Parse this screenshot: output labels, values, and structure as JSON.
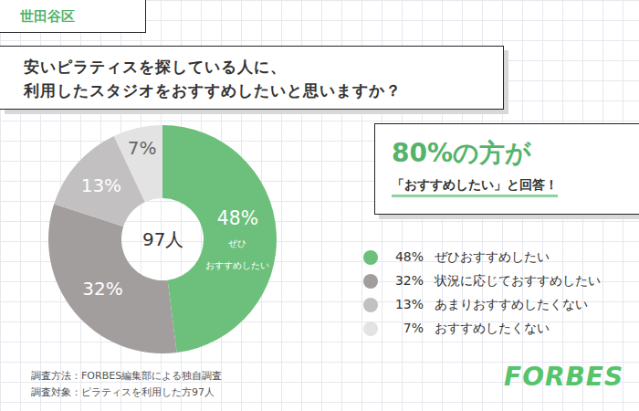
{
  "header_tag": "世田谷区",
  "title": "安いピラティスを探している人に、\n利用したスタジオをおすすめしたいと思いますか？",
  "callout": {
    "headline": "80%の方が",
    "text": "「おすすめしたい」と回答！"
  },
  "chart_data": {
    "type": "donut",
    "center_label": "97人",
    "categories": [
      "ぜひおすすめしたい",
      "状況に応じておすすめしたい",
      "あまりおすすめしたくない",
      "おすすめしたくない"
    ],
    "values": [
      48,
      32,
      13,
      7
    ],
    "value_labels": [
      "48%",
      "32%",
      "13%",
      "7%"
    ],
    "slice_notes": [
      "ぜひ\nおすすめしたい",
      null,
      null,
      null
    ],
    "colors": [
      "#6cc07c",
      "#a39e9e",
      "#c2c0c0",
      "#e3e3e3"
    ],
    "data_labels": true,
    "legend": "right"
  },
  "notes": [
    "調査方法：FORBES編集部による独自調査",
    "調査対象：ピラティスを利用した方97人"
  ],
  "logo": "FORBES"
}
